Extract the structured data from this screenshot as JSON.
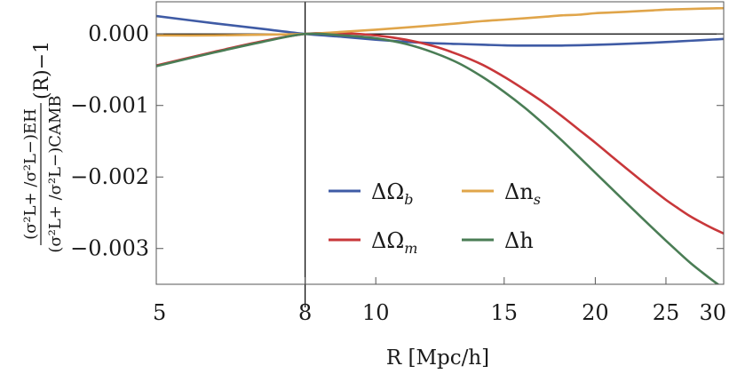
{
  "chart_data": {
    "type": "line",
    "xlabel": "R [Mpc/h]",
    "ylabel": {
      "numerator": "(σ²L+ /σ²L−)EH",
      "denominator": "(σ²L+ /σ²L−)CAMB",
      "suffix": "(R)−1"
    },
    "x_scale": "log",
    "xlim": [
      5,
      30
    ],
    "ylim": [
      -0.0035,
      0.00045
    ],
    "x_ticks": [
      5,
      8,
      10,
      15,
      20,
      25,
      30
    ],
    "x_tick_labels": [
      "5",
      "8",
      "10",
      "15",
      "20",
      "25",
      "30"
    ],
    "y_ticks": [
      0.0,
      -0.001,
      -0.002,
      -0.003
    ],
    "y_tick_labels": [
      "0.000",
      "-0.001",
      "-0.002",
      "-0.003"
    ],
    "reference_lines": {
      "vertical_x": 8,
      "horizontal_y": 0
    },
    "legend_position": "lower-center",
    "series": [
      {
        "name": "ΔΩb",
        "legend_main": "ΔΩ",
        "legend_sub": "b",
        "color": "#3f5ba5",
        "x": [
          5,
          6,
          7,
          8,
          9,
          10,
          11,
          12,
          13,
          14,
          15,
          16,
          17,
          18,
          19,
          20,
          21,
          22,
          23,
          24,
          25,
          26,
          27,
          28,
          29,
          30
        ],
        "y": [
          0.00025,
          0.00015,
          7e-05,
          0.0,
          -4e-05,
          -8e-05,
          -0.00011,
          -0.00013,
          -0.00014,
          -0.00015,
          -0.00016,
          -0.000163,
          -0.000163,
          -0.000162,
          -0.000158,
          -0.000152,
          -0.000145,
          -0.000138,
          -0.00013,
          -0.000122,
          -0.000113,
          -0.000104,
          -9.5e-05,
          -8.6e-05,
          -7.8e-05,
          -7e-05
        ]
      },
      {
        "name": "ΔΩm",
        "legend_main": "ΔΩ",
        "legend_sub": "m",
        "color": "#c8373a",
        "x": [
          5,
          6,
          7,
          8,
          9,
          10,
          11,
          12,
          13,
          14,
          15,
          16,
          17,
          18,
          19,
          20,
          21,
          22,
          23,
          24,
          25,
          26,
          27,
          28,
          29,
          30
        ],
        "y": [
          -0.00044,
          -0.00025,
          -0.0001,
          0.0,
          1e-05,
          -2e-05,
          -8e-05,
          -0.00017,
          -0.00029,
          -0.00043,
          -0.0006,
          -0.00078,
          -0.00096,
          -0.00115,
          -0.00134,
          -0.00152,
          -0.0017,
          -0.00187,
          -0.00203,
          -0.00218,
          -0.00232,
          -0.00244,
          -0.00255,
          -0.00264,
          -0.00272,
          -0.00279
        ]
      },
      {
        "name": "Δns",
        "legend_main": "Δn",
        "legend_sub": "s",
        "color": "#e0a54a",
        "x": [
          5,
          6,
          7,
          8,
          9,
          10,
          11,
          12,
          13,
          14,
          15,
          16,
          17,
          18,
          19,
          20,
          21,
          22,
          23,
          24,
          25,
          26,
          27,
          28,
          29,
          30
        ],
        "y": [
          -2e-05,
          -2e-05,
          -1e-05,
          0.0,
          3e-05,
          6e-05,
          9e-05,
          0.00012,
          0.00015,
          0.00018,
          0.0002,
          0.00022,
          0.00024,
          0.00026,
          0.00027,
          0.00029,
          0.0003,
          0.00031,
          0.00032,
          0.00033,
          0.00034,
          0.000345,
          0.00035,
          0.000355,
          0.000358,
          0.00036
        ]
      },
      {
        "name": "Δh",
        "legend_main": "Δh",
        "legend_sub": "",
        "color": "#4a7d55",
        "x": [
          5,
          6,
          7,
          8,
          9,
          10,
          11,
          12,
          13,
          14,
          15,
          16,
          17,
          18,
          19,
          20,
          21,
          22,
          23,
          24,
          25,
          26,
          27,
          28,
          29,
          30
        ],
        "y": [
          -0.00045,
          -0.00026,
          -0.00011,
          0.0,
          -2e-05,
          -6e-05,
          -0.00014,
          -0.00026,
          -0.00041,
          -0.0006,
          -0.00081,
          -0.00103,
          -0.00126,
          -0.00149,
          -0.00172,
          -0.00194,
          -0.00215,
          -0.00235,
          -0.00254,
          -0.00272,
          -0.00289,
          -0.00305,
          -0.0032,
          -0.00333,
          -0.00345,
          -0.00356
        ]
      }
    ]
  }
}
